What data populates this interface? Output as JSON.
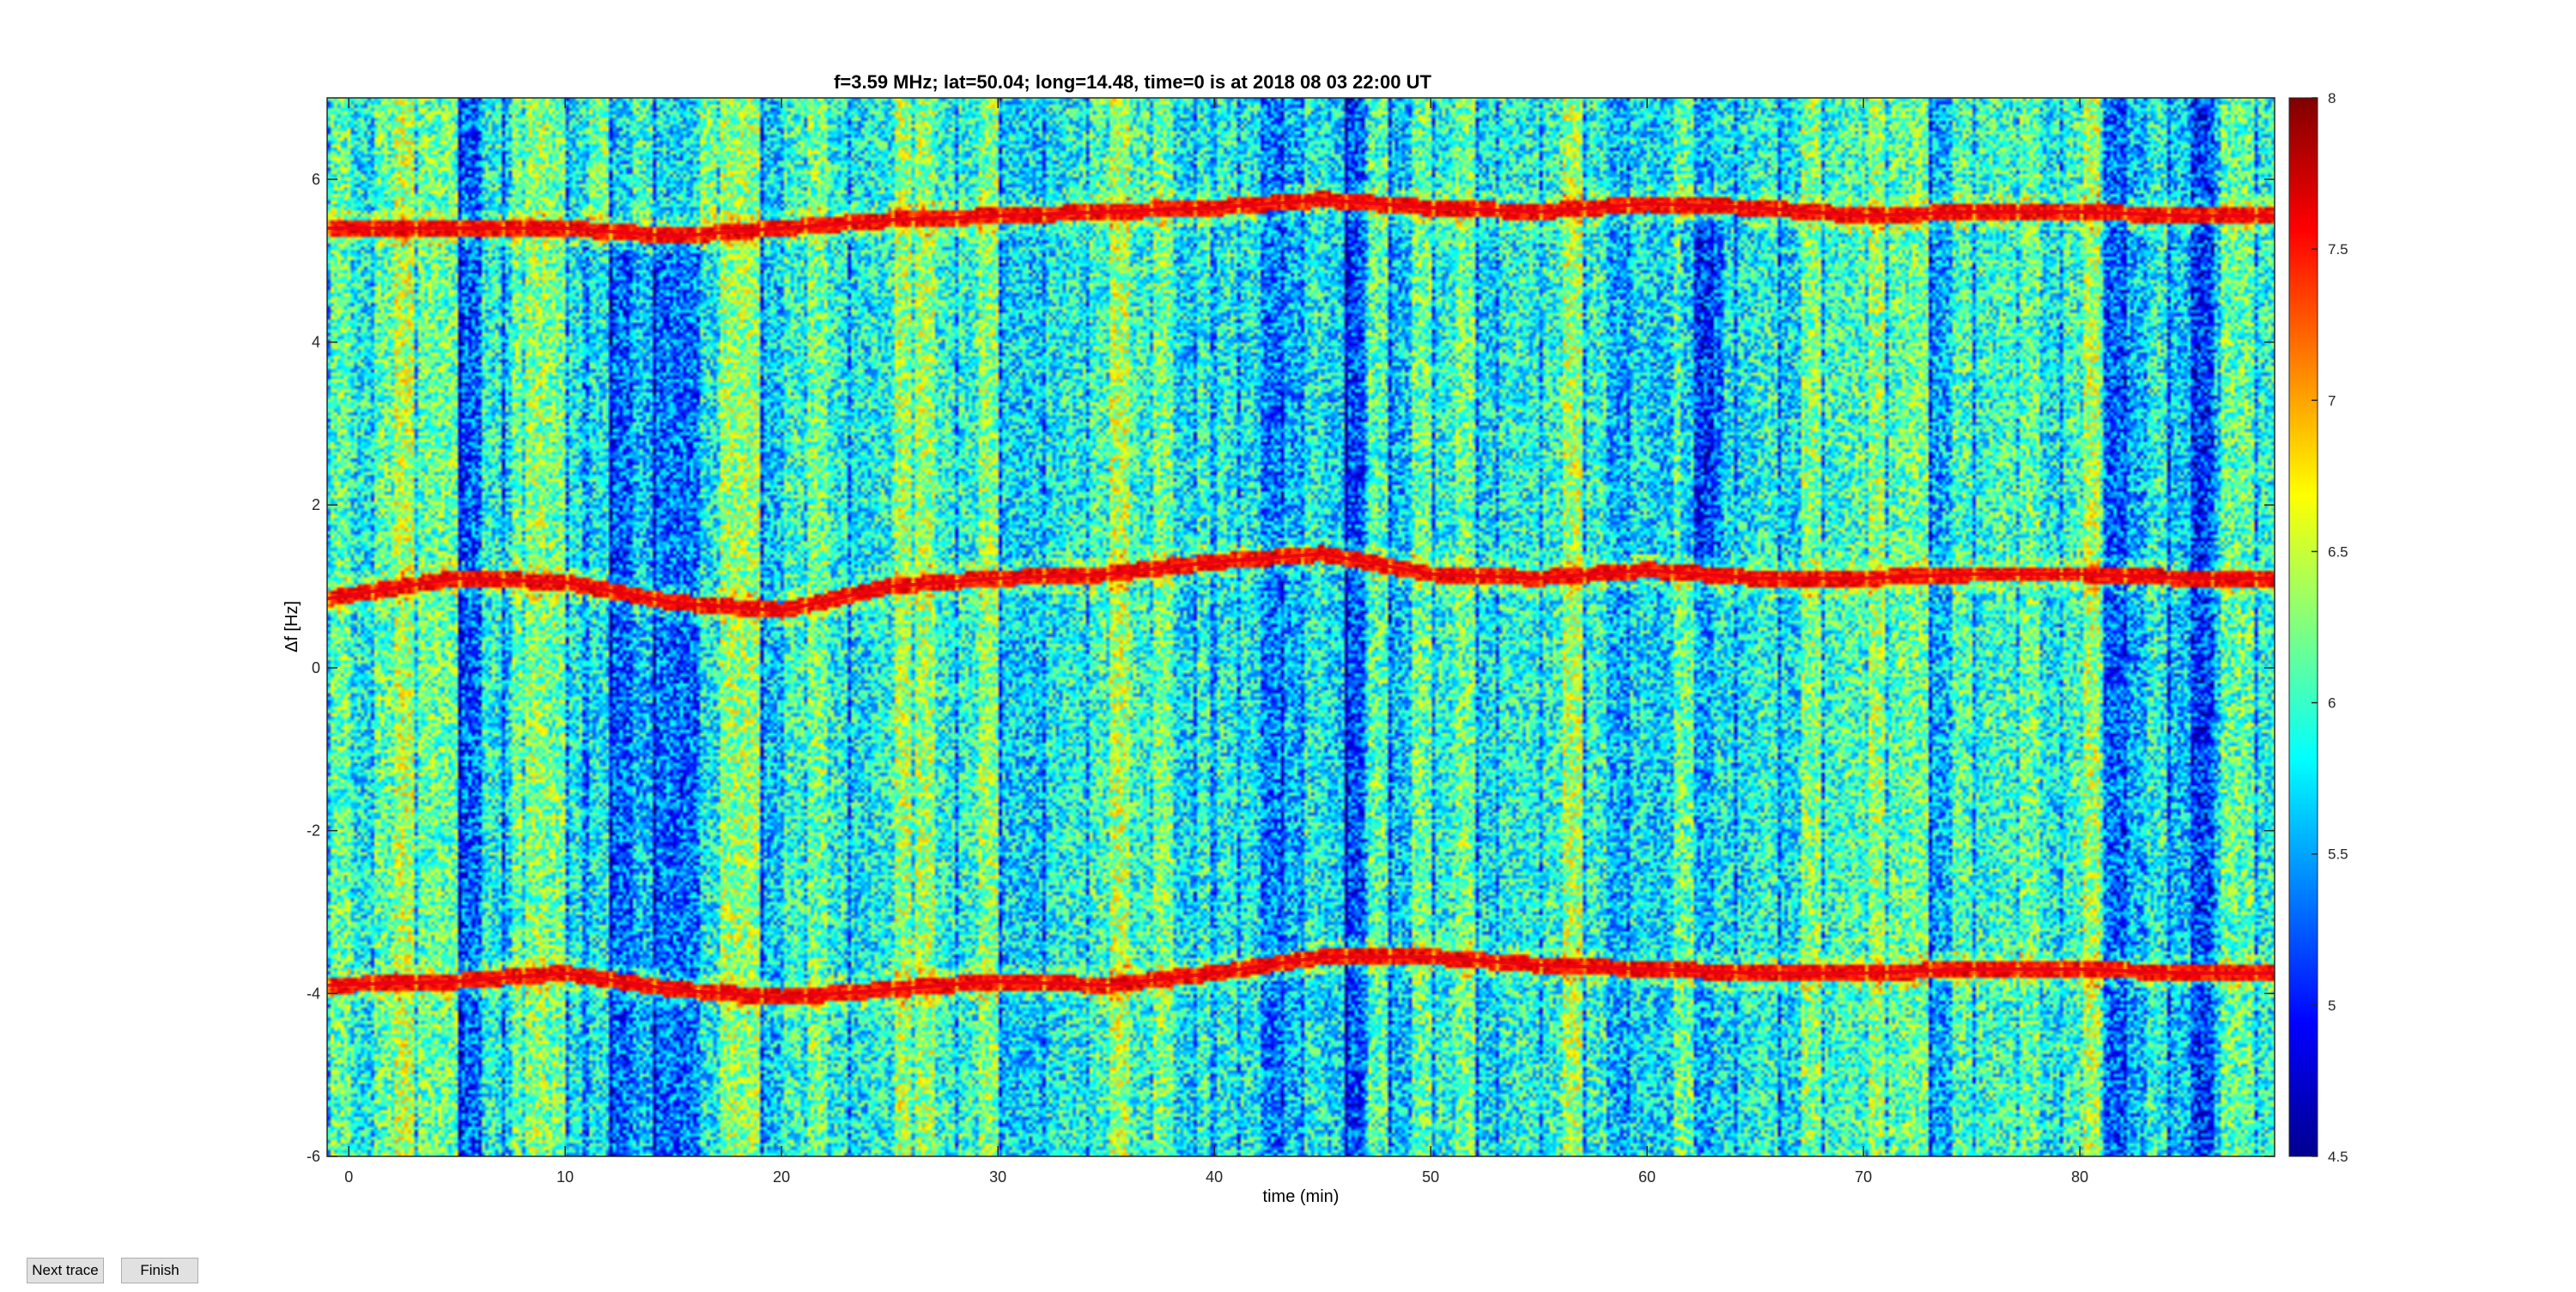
{
  "chart_data": {
    "type": "heatmap",
    "title": "f=3.59 MHz;  lat=50.04; long=14.48, time=0 is at 2018 08 03 22:00 UT",
    "xlabel": "time (min)",
    "ylabel": "Δf [Hz]",
    "xlim": [
      -1,
      89
    ],
    "ylim": [
      -6,
      7
    ],
    "xticks": [
      "0",
      "10",
      "20",
      "30",
      "40",
      "50",
      "60",
      "70",
      "80"
    ],
    "yticks": [
      "-6",
      "-4",
      "-2",
      "0",
      "2",
      "4",
      "6"
    ],
    "colorbar": {
      "range": [
        4.5,
        8
      ],
      "ticks": [
        "4.5",
        "5",
        "5.5",
        "6",
        "6.5",
        "7",
        "7.5",
        "8"
      ],
      "colormap": "jet"
    },
    "background_level": 6.0,
    "signal_traces": [
      {
        "time": [
          -1,
          5,
          10,
          15,
          20,
          25,
          30,
          35,
          40,
          45,
          50,
          55,
          60,
          65,
          70,
          75,
          80,
          85,
          89
        ],
        "df": [
          0.85,
          1.1,
          1.05,
          0.8,
          0.7,
          1.0,
          1.1,
          1.15,
          1.3,
          1.4,
          1.15,
          1.1,
          1.2,
          1.1,
          1.1,
          1.15,
          1.15,
          1.1,
          1.1
        ]
      },
      {
        "time": [
          -1,
          5,
          10,
          15,
          20,
          25,
          30,
          35,
          40,
          45,
          50,
          55,
          60,
          65,
          70,
          75,
          80,
          85,
          89
        ],
        "df": [
          -3.9,
          -3.85,
          -3.75,
          -3.95,
          -4.05,
          -3.95,
          -3.85,
          -3.9,
          -3.75,
          -3.55,
          -3.55,
          -3.65,
          -3.7,
          -3.75,
          -3.75,
          -3.7,
          -3.7,
          -3.75,
          -3.75
        ]
      },
      {
        "time": [
          -1,
          5,
          10,
          15,
          20,
          25,
          30,
          35,
          40,
          45,
          50,
          55,
          60,
          65,
          70,
          75,
          80,
          85,
          89
        ],
        "df": [
          5.4,
          5.4,
          5.4,
          5.3,
          5.4,
          5.5,
          5.55,
          5.6,
          5.65,
          5.75,
          5.65,
          5.6,
          5.7,
          5.65,
          5.55,
          5.6,
          5.6,
          5.55,
          5.55
        ]
      }
    ],
    "dark_bands": [
      {
        "t0": 10.8,
        "t1": 17.0,
        "df0": -6,
        "df1": 5.2
      },
      {
        "t0": 39.8,
        "t1": 47.0,
        "df0": -6,
        "df1": 7
      },
      {
        "t0": 61.5,
        "t1": 63.5,
        "df0": 1.3,
        "df1": 5.5
      },
      {
        "t0": 81.0,
        "t1": 86.5,
        "df0": -6,
        "df1": 7
      },
      {
        "t0": 5.0,
        "t1": 7.5,
        "df0": -6,
        "df1": 7
      }
    ]
  },
  "buttons": {
    "next_trace": "Next trace",
    "finish": "Finish"
  },
  "colors": {
    "axis": "#262626",
    "button_bg": "#e1e1e1"
  }
}
